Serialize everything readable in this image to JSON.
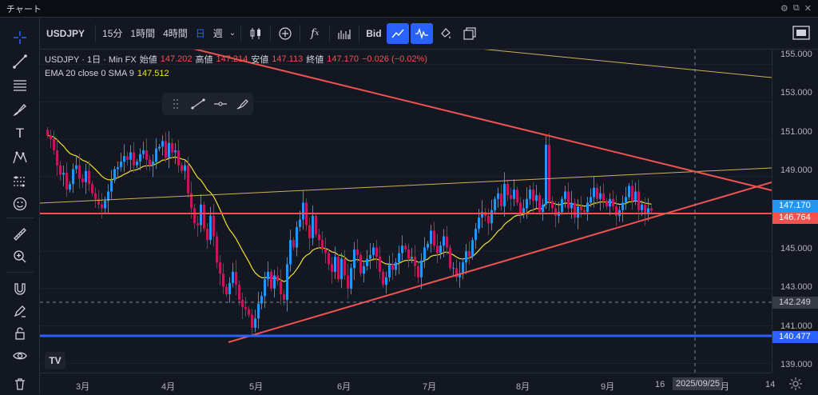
{
  "window": {
    "title": "チャート"
  },
  "toolbar": {
    "symbol": "USDJPY",
    "intervals": [
      "15分",
      "1時間",
      "4時間"
    ],
    "calendar_icon": "日",
    "week": "週",
    "bid": "Bid"
  },
  "legend": {
    "symbol_line": "USDJPY · 1日 · Min FX",
    "open_label": "始値",
    "open": "147.202",
    "high_label": "高値",
    "high": "147.214",
    "low_label": "安値",
    "low": "147.113",
    "close_label": "終値",
    "close": "147.170",
    "change": "−0.026 (−0.02%)",
    "ema_label": "EMA 20 close 0 SMA 9",
    "ema_value": "147.512"
  },
  "price_axis": {
    "labels": [
      "155.000",
      "153.000",
      "151.000",
      "149.000",
      "145.000",
      "143.000",
      "141.000",
      "139.000"
    ],
    "tags": {
      "current": "147.170",
      "red_line": "146.764",
      "cross": "142.249",
      "blue_line": "140.477"
    }
  },
  "time_axis": {
    "labels": [
      "3月",
      "4月",
      "5月",
      "6月",
      "7月",
      "8月",
      "9月",
      "16",
      "月",
      "14"
    ],
    "crosshair_date": "2025/09/25"
  },
  "colors": {
    "up": "#26a69a",
    "down": "#ef5350",
    "candle_up": "#2196f3",
    "candle_down": "#c2185b",
    "ema": "#f0e130",
    "trend_red": "#ef5350",
    "horizontal_blue": "#2962ff",
    "accent": "#2962ff"
  },
  "chart_data": {
    "type": "candlestick",
    "symbol": "USDJPY",
    "timeframe": "1日",
    "ylim": [
      138.5,
      155.8
    ],
    "x_labels": [
      "3月",
      "4月",
      "5月",
      "6月",
      "7月",
      "8月",
      "9月"
    ],
    "horizontal_lines": [
      146.764,
      140.477
    ],
    "closes": [
      151.2,
      151.0,
      150.4,
      149.6,
      149.1,
      149.2,
      148.3,
      148.6,
      149.4,
      149.6,
      148.9,
      148.7,
      149.3,
      148.6,
      148.1,
      147.8,
      147.5,
      147.3,
      147.7,
      148.2,
      148.8,
      149.4,
      149.5,
      149.8,
      150.1,
      149.9,
      150.3,
      149.6,
      149.8,
      150.2,
      150.4,
      149.9,
      149.6,
      149.8,
      150.5,
      150.6,
      150.9,
      150.0,
      150.8,
      150.3,
      150.4,
      149.6,
      149.3,
      149.6,
      148.1,
      147.3,
      146.5,
      146.4,
      147.5,
      146.2,
      145.6,
      146.9,
      145.8,
      144.4,
      143.8,
      143.1,
      142.7,
      143.3,
      143.9,
      143.2,
      142.4,
      142.0,
      141.9,
      141.6,
      140.9,
      141.4,
      142.2,
      142.6,
      143.5,
      143.9,
      143.0,
      143.7,
      143.4,
      142.7,
      142.4,
      144.3,
      145.6,
      145.2,
      146.3,
      146.7,
      147.6,
      146.4,
      145.7,
      146.9,
      145.9,
      145.6,
      145.1,
      144.9,
      144.3,
      143.9,
      144.7,
      143.5,
      144.6,
      143.7,
      143.0,
      144.1,
      145.1,
      144.8,
      143.8,
      144.2,
      144.6,
      144.8,
      145.2,
      144.7,
      143.9,
      143.2,
      143.6,
      144.3,
      144.0,
      144.4,
      144.9,
      145.3,
      145.1,
      144.6,
      144.7,
      144.2,
      143.6,
      144.5,
      145.2,
      145.4,
      146.1,
      145.3,
      144.9,
      145.3,
      145.8,
      145.2,
      144.1,
      144.1,
      143.6,
      143.8,
      144.4,
      145.0,
      144.7,
      145.6,
      146.2,
      146.8,
      147.1,
      146.9,
      146.5,
      147.2,
      147.8,
      148.1,
      147.4,
      148.6,
      148.0,
      147.8,
      148.3,
      147.6,
      147.0,
      147.3,
      147.8,
      148.3,
      147.7,
      148.0,
      147.1,
      147.5,
      150.7,
      147.7,
      147.3,
      146.9,
      147.1,
      147.8,
      148.2,
      147.3,
      147.6,
      146.8,
      147.4,
      147.2,
      147.1,
      147.6,
      147.9,
      148.4,
      147.8,
      148.1,
      147.7,
      147.4,
      147.8,
      147.4,
      146.9,
      147.2,
      147.6,
      147.9,
      148.5,
      147.7,
      148.2,
      147.2,
      147.5,
      147.0,
      147.3,
      147.17
    ]
  }
}
